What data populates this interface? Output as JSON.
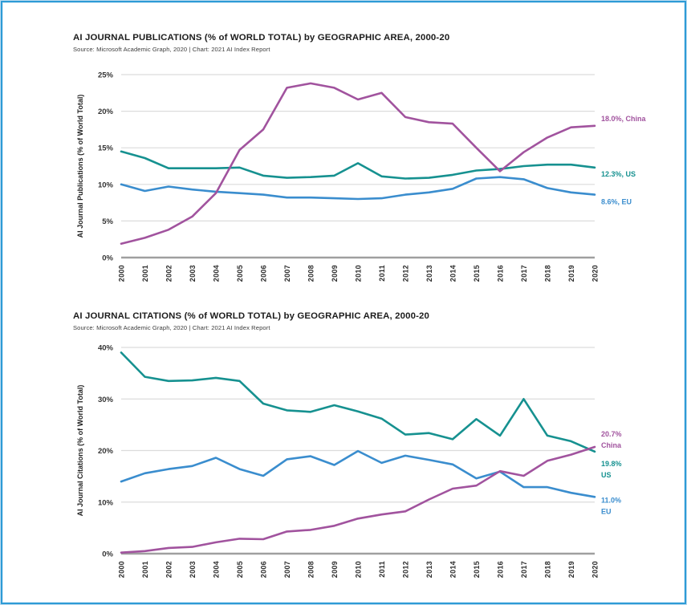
{
  "frame": {
    "border_color": "#2e9bd6"
  },
  "colors": {
    "china": "#a1539e",
    "us": "#169190",
    "eu": "#3a8dce",
    "grid": "#dcdcdc",
    "baseline": "#9f9f9f",
    "tick_text": "#333333"
  },
  "chart_data": [
    {
      "type": "line",
      "title": "AI JOURNAL PUBLICATIONS (% of WORLD TOTAL) by GEOGRAPHIC AREA, 2000-20",
      "source": "Source: Microsoft Academic Graph, 2020 | Chart: 2021 AI Index Report",
      "ylabel": "AI Journal Publications (% of World Total)",
      "ylim": [
        0,
        25
      ],
      "yticks": [
        0,
        5,
        10,
        15,
        20,
        25
      ],
      "ytick_format": "{v}%",
      "grid": "horizontal",
      "legend_position": "line-end-labels-right",
      "categories": [
        "2000",
        "2001",
        "2002",
        "2003",
        "2004",
        "2005",
        "2006",
        "2007",
        "2008",
        "2009",
        "2010",
        "2011",
        "2012",
        "2013",
        "2014",
        "2015",
        "2016",
        "2017",
        "2018",
        "2019",
        "2020"
      ],
      "series": [
        {
          "name": "EU",
          "color": "#3a8dce",
          "values": [
            10.0,
            9.1,
            9.7,
            9.3,
            9.0,
            8.8,
            8.6,
            8.2,
            8.2,
            8.1,
            8.0,
            8.1,
            8.6,
            8.9,
            9.4,
            10.8,
            11.0,
            10.7,
            9.5,
            8.9,
            8.6
          ],
          "end_label_lines": [
            "8.6%, EU"
          ],
          "end_label_dy": 12
        },
        {
          "name": "US",
          "color": "#169190",
          "values": [
            14.5,
            13.6,
            12.2,
            12.2,
            12.2,
            12.3,
            11.2,
            10.9,
            11.0,
            11.2,
            12.9,
            11.1,
            10.8,
            10.9,
            11.3,
            11.9,
            12.1,
            12.5,
            12.7,
            12.7,
            12.3
          ],
          "end_label_lines": [
            "12.3%, US"
          ],
          "end_label_dy": 11
        },
        {
          "name": "China",
          "color": "#a1539e",
          "values": [
            1.9,
            2.7,
            3.8,
            5.6,
            8.8,
            14.7,
            17.5,
            23.2,
            23.8,
            23.2,
            21.6,
            22.5,
            19.2,
            18.5,
            18.3,
            15.0,
            11.8,
            14.4,
            16.4,
            17.8,
            18.0
          ],
          "end_label_lines": [
            "18.0%, China"
          ],
          "end_label_dy": -6
        }
      ]
    },
    {
      "type": "line",
      "title": "AI JOURNAL CITATIONS (% of WORLD TOTAL) by GEOGRAPHIC AREA, 2000-20",
      "source": "Source: Microsoft Academic Graph, 2020 | Chart: 2021 AI Index Report",
      "ylabel": "AI Journal Citations (% of World Total)",
      "ylim": [
        0,
        40
      ],
      "yticks": [
        0,
        10,
        20,
        30,
        40
      ],
      "ytick_format": "{v}%",
      "grid": "horizontal",
      "legend_position": "line-end-labels-right",
      "categories": [
        "2000",
        "2001",
        "2002",
        "2003",
        "2004",
        "2005",
        "2006",
        "2007",
        "2008",
        "2009",
        "2010",
        "2011",
        "2012",
        "2013",
        "2014",
        "2015",
        "2016",
        "2017",
        "2018",
        "2019",
        "2020"
      ],
      "series": [
        {
          "name": "EU",
          "color": "#3a8dce",
          "values": [
            14.0,
            15.6,
            16.4,
            17.0,
            18.6,
            16.4,
            15.1,
            18.3,
            18.9,
            17.2,
            19.9,
            17.6,
            19.0,
            18.2,
            17.3,
            14.6,
            15.9,
            12.9,
            12.9,
            11.8,
            11.0
          ],
          "end_label_lines": [
            "11.0%",
            "EU"
          ],
          "end_label_dy": 7
        },
        {
          "name": "US",
          "color": "#169190",
          "values": [
            39.0,
            34.3,
            33.5,
            33.6,
            34.1,
            33.5,
            29.1,
            27.8,
            27.5,
            28.8,
            27.6,
            26.2,
            23.1,
            23.4,
            22.2,
            26.1,
            22.9,
            30.0,
            22.9,
            21.8,
            19.8
          ],
          "end_label_lines": [
            "19.8%",
            "US"
          ],
          "end_label_dy": 18
        },
        {
          "name": "China",
          "color": "#a1539e",
          "values": [
            0.2,
            0.5,
            1.1,
            1.3,
            2.2,
            2.9,
            2.8,
            4.3,
            4.6,
            5.4,
            6.8,
            7.6,
            8.2,
            10.5,
            12.6,
            13.2,
            16.0,
            15.1,
            18.0,
            19.2,
            20.7
          ],
          "end_label_lines": [
            "20.7%",
            "China"
          ],
          "end_label_dy": -13
        }
      ]
    }
  ]
}
